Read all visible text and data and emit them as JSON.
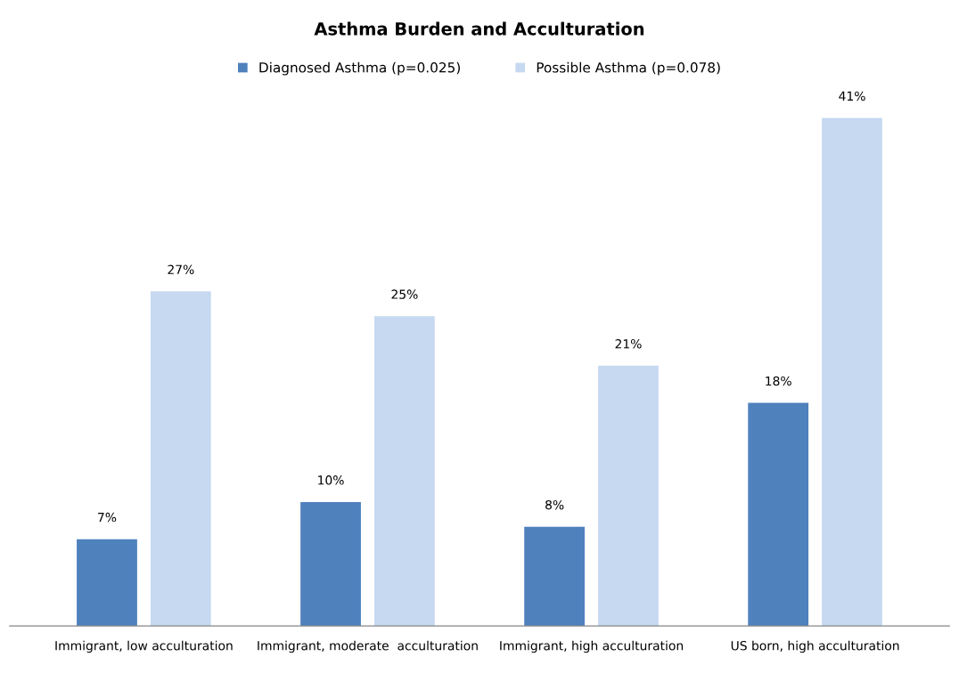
{
  "chart_data": {
    "type": "bar",
    "title": "Asthma Burden and Acculturation",
    "categories": [
      "Immigrant, low acculturation",
      "Immigrant, moderate  acculturation",
      "Immigrant, high acculturation",
      "US born, high acculturation"
    ],
    "series": [
      {
        "name": "Diagnosed Asthma (p=0.025)",
        "color": "#4f81bd",
        "values": [
          7,
          10,
          8,
          18
        ],
        "value_labels": [
          "7%",
          "10%",
          "8%",
          "18%"
        ]
      },
      {
        "name": "Possible Asthma (p=0.078)",
        "color": "#c6d9f1",
        "values": [
          27,
          25,
          21,
          41
        ],
        "value_labels": [
          "27%",
          "25%",
          "21%",
          "41%"
        ]
      }
    ],
    "legend": "top",
    "grid": false
  }
}
